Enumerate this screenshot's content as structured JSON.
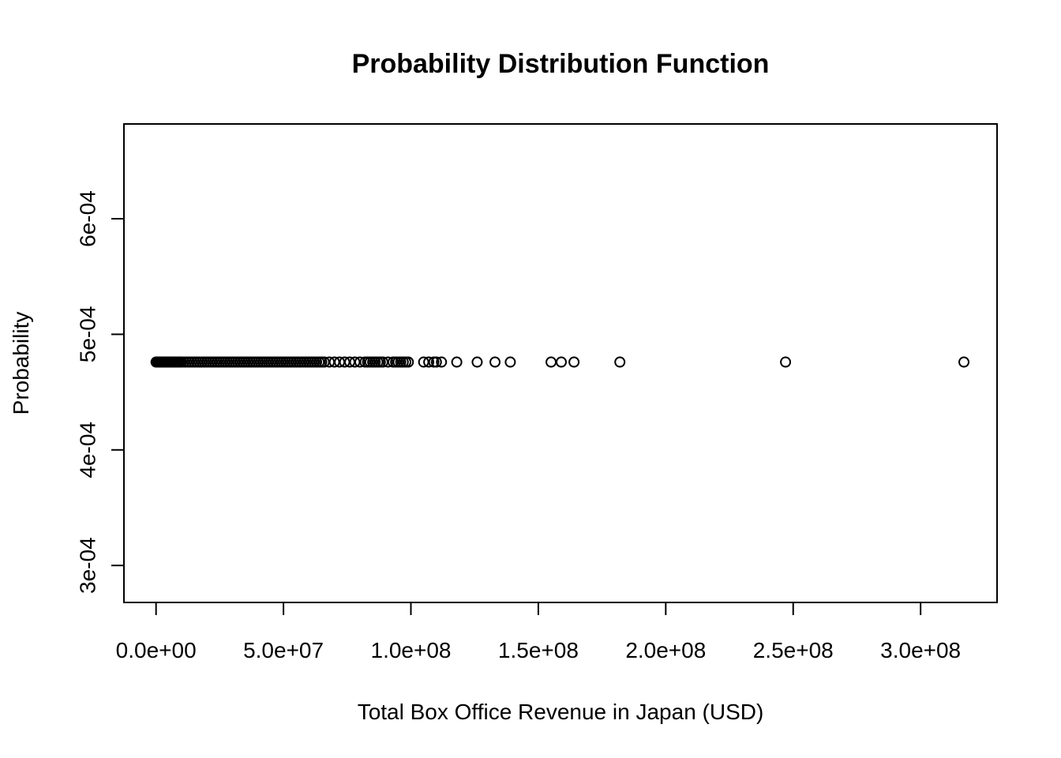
{
  "chart_data": {
    "type": "scatter",
    "title": "Probability Distribution Function",
    "xlabel": "Total Box Office Revenue in Japan (USD)",
    "ylabel": "Probability",
    "xlim": [
      -12600000,
      330000000
    ],
    "ylim": [
      0.000268,
      0.000682
    ],
    "x_ticks": [
      0,
      50000000,
      100000000,
      150000000,
      200000000,
      250000000,
      300000000
    ],
    "x_tick_labels": [
      "0.0e+00",
      "5.0e+07",
      "1.0e+08",
      "1.5e+08",
      "2.0e+08",
      "2.5e+08",
      "3.0e+08"
    ],
    "y_ticks": [
      0.0003,
      0.0004,
      0.0005,
      0.0006
    ],
    "y_tick_labels": [
      "3e-04",
      "4e-04",
      "5e-04",
      "6e-04"
    ],
    "grid": false,
    "legend": "none",
    "marker": "open-circle",
    "series": [
      {
        "y_value": 0.000476,
        "x": [
          0,
          500000,
          1000000,
          1500000,
          2000000,
          2500000,
          3000000,
          3500000,
          4000000,
          4500000,
          5000000,
          5500000,
          6000000,
          6500000,
          7000000,
          7500000,
          8000000,
          8500000,
          9000000,
          9500000,
          10000000,
          11000000,
          12000000,
          13000000,
          14000000,
          15000000,
          16000000,
          17000000,
          18000000,
          19000000,
          20000000,
          21000000,
          22000000,
          23000000,
          24000000,
          25000000,
          26000000,
          27000000,
          28000000,
          29000000,
          30000000,
          31000000,
          32000000,
          33000000,
          34000000,
          35000000,
          36000000,
          37000000,
          38000000,
          39000000,
          40000000,
          41000000,
          42000000,
          43000000,
          44000000,
          45000000,
          46000000,
          47000000,
          48000000,
          49000000,
          50000000,
          51000000,
          52000000,
          53000000,
          54000000,
          55000000,
          56000000,
          57000000,
          58000000,
          59000000,
          60000000,
          61000000,
          62000000,
          63000000,
          64000000,
          65000000,
          66000000,
          68000000,
          70000000,
          72000000,
          74000000,
          76000000,
          78000000,
          80000000,
          82000000,
          83000000,
          84000000,
          85000000,
          86000000,
          87000000,
          88000000,
          89000000,
          91000000,
          93000000,
          94000000,
          95000000,
          96000000,
          97000000,
          98000000,
          99000000,
          105000000,
          107000000,
          109000000,
          110000000,
          112000000,
          118000000,
          126000000,
          133000000,
          139000000,
          155000000,
          159000000,
          164000000,
          182000000,
          247000000,
          317000000
        ]
      }
    ]
  }
}
